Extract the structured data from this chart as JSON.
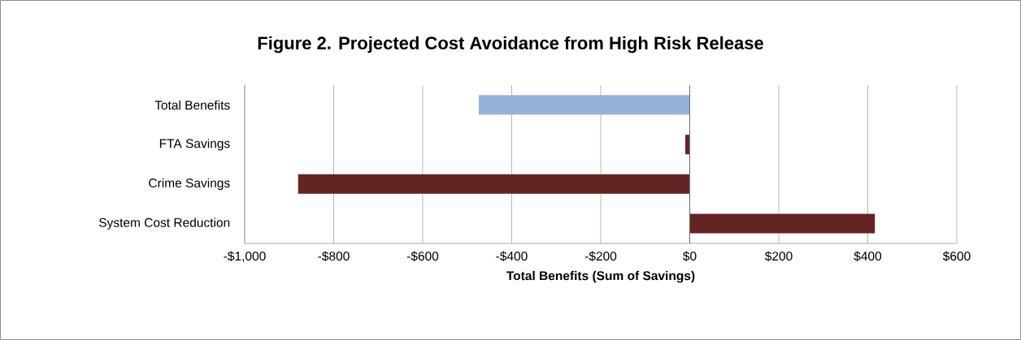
{
  "chart_data": {
    "type": "bar",
    "orientation": "horizontal",
    "title": "Figure 2. Projected Cost Avoidance from High Risk Release",
    "xlabel": "Total Benefits (Sum of Savings)",
    "categories": [
      "Total Benefits",
      "FTA Savings",
      "Crime Savings",
      "System Cost Reduction"
    ],
    "values": [
      -474,
      -10,
      -880,
      416
    ],
    "colors": [
      "#95b3d7",
      "#632523",
      "#632523",
      "#632523"
    ],
    "xlim": [
      -1000,
      600
    ],
    "xticks": [
      {
        "value": -1000,
        "label": "-$1,000"
      },
      {
        "value": -800,
        "label": "-$800"
      },
      {
        "value": -600,
        "label": "-$600"
      },
      {
        "value": -400,
        "label": "-$400"
      },
      {
        "value": -200,
        "label": "-$200"
      },
      {
        "value": 0,
        "label": "$0"
      },
      {
        "value": 200,
        "label": "$200"
      },
      {
        "value": 400,
        "label": "$400"
      },
      {
        "value": 600,
        "label": "$600"
      }
    ],
    "grid": "x"
  }
}
